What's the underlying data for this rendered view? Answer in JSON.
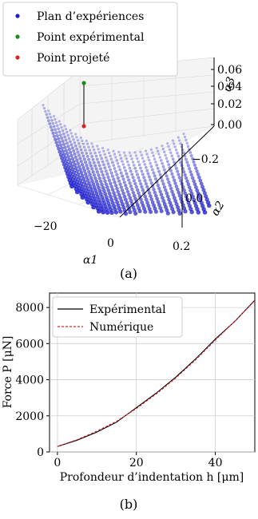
{
  "panel_a": {
    "legend": [
      {
        "label": "Plan d’expériences",
        "color": "#1f1fcc"
      },
      {
        "label": "Point expérimental",
        "color": "#1e8a1e"
      },
      {
        "label": "Point projeté",
        "color": "#d62728"
      }
    ],
    "caption": "(a)",
    "alpha1_label": "α1",
    "alpha2_label": "α2",
    "alpha3_label": "α3",
    "alpha1_ticks": [
      "−20",
      "0",
      "0.2"
    ],
    "alpha2_ticks": [
      "−0.2",
      "0.0"
    ],
    "alpha3_ticks": [
      "0.06",
      "0.04",
      "0.02",
      "0.00"
    ]
  },
  "panel_b": {
    "caption": "(b)"
  },
  "chart_data": [
    {
      "type": "scatter",
      "title": "",
      "xlabel": "α1",
      "ylabel": "α2",
      "zlabel": "α3",
      "legend_position": "top-left",
      "series": [
        {
          "name": "Plan d’expériences",
          "color": "#1f1fcc"
        },
        {
          "name": "Point expérimental",
          "color": "#1e8a1e"
        },
        {
          "name": "Point projeté",
          "color": "#d62728"
        }
      ],
      "grid": true
    },
    {
      "type": "line",
      "title": "",
      "xlabel": "Profondeur d’indentation h [μm]",
      "ylabel": "Force P [μN]",
      "xlim": [
        -2,
        50
      ],
      "ylim": [
        0,
        8800
      ],
      "x_ticks": [
        0,
        20,
        40
      ],
      "y_ticks": [
        0,
        2000,
        4000,
        6000,
        8000
      ],
      "grid": true,
      "legend_position": "top-left",
      "series": [
        {
          "name": "Expérimental",
          "color": "#000000",
          "style": "solid",
          "x": [
            0,
            5,
            10,
            15,
            20,
            25,
            30,
            35,
            40,
            45,
            50
          ],
          "y": [
            300,
            650,
            1100,
            1650,
            2450,
            3250,
            4150,
            5150,
            6250,
            7250,
            8400
          ]
        },
        {
          "name": "Numérique",
          "color": "#d62728",
          "style": "dashed",
          "x": [
            0,
            5,
            10,
            15,
            20,
            25,
            30,
            35,
            40,
            45,
            50
          ],
          "y": [
            300,
            680,
            1150,
            1700,
            2400,
            3200,
            4100,
            5100,
            6200,
            7250,
            8380
          ]
        }
      ]
    }
  ]
}
